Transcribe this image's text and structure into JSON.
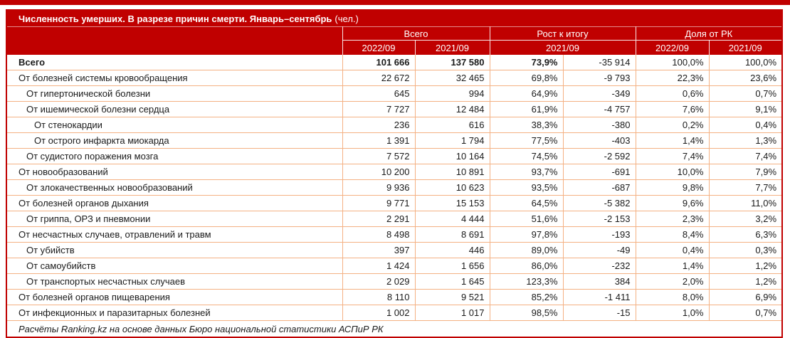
{
  "colors": {
    "header_bg": "#C00000",
    "grid_border": "#F4B183",
    "header_text": "#FFFFFF"
  },
  "table": {
    "title": "Численность умерших. В разрезе причин смерти. Январь–сентябрь",
    "title_suffix": "(чел.)",
    "column_groups": [
      {
        "label": "Всего"
      },
      {
        "label": "Рост к итогу"
      },
      {
        "label": "Доля от РК"
      }
    ],
    "subheaders": [
      "2022/09",
      "2021/09",
      "2021/09",
      "2022/09",
      "2021/09"
    ],
    "rows": [
      {
        "label": "Всего",
        "indent": 0,
        "bold_label": true,
        "bold_values": 3,
        "values": [
          "101 666",
          "137 580",
          "73,9%",
          "-35 914",
          "100,0%",
          "100,0%"
        ]
      },
      {
        "label": "От болезней системы кровообращения",
        "indent": 0,
        "values": [
          "22 672",
          "32 465",
          "69,8%",
          "-9 793",
          "22,3%",
          "23,6%"
        ]
      },
      {
        "label": "От гипертонической болезни",
        "indent": 1,
        "values": [
          "645",
          "994",
          "64,9%",
          "-349",
          "0,6%",
          "0,7%"
        ]
      },
      {
        "label": "От ишемической болезни сердца",
        "indent": 1,
        "values": [
          "7 727",
          "12 484",
          "61,9%",
          "-4 757",
          "7,6%",
          "9,1%"
        ]
      },
      {
        "label": "От стенокардии",
        "indent": 2,
        "values": [
          "236",
          "616",
          "38,3%",
          "-380",
          "0,2%",
          "0,4%"
        ]
      },
      {
        "label": "От острого инфаркта миокарда",
        "indent": 2,
        "values": [
          "1 391",
          "1 794",
          "77,5%",
          "-403",
          "1,4%",
          "1,3%"
        ]
      },
      {
        "label": "От судистого поражения мозга",
        "indent": 1,
        "values": [
          "7 572",
          "10 164",
          "74,5%",
          "-2 592",
          "7,4%",
          "7,4%"
        ]
      },
      {
        "label": "От новообразований",
        "indent": 0,
        "values": [
          "10 200",
          "10 891",
          "93,7%",
          "-691",
          "10,0%",
          "7,9%"
        ]
      },
      {
        "label": "От злокачественных новообразований",
        "indent": 1,
        "values": [
          "9 936",
          "10 623",
          "93,5%",
          "-687",
          "9,8%",
          "7,7%"
        ]
      },
      {
        "label": "От болезней органов дыхания",
        "indent": 0,
        "values": [
          "9 771",
          "15 153",
          "64,5%",
          "-5 382",
          "9,6%",
          "11,0%"
        ]
      },
      {
        "label": "От гриппа, ОРЗ и пневмонии",
        "indent": 1,
        "values": [
          "2 291",
          "4 444",
          "51,6%",
          "-2 153",
          "2,3%",
          "3,2%"
        ]
      },
      {
        "label": "От несчастных случаев, отравлений и травм",
        "indent": 0,
        "values": [
          "8 498",
          "8 691",
          "97,8%",
          "-193",
          "8,4%",
          "6,3%"
        ]
      },
      {
        "label": "От убийств",
        "indent": 1,
        "values": [
          "397",
          "446",
          "89,0%",
          "-49",
          "0,4%",
          "0,3%"
        ]
      },
      {
        "label": "От самоубийств",
        "indent": 1,
        "values": [
          "1 424",
          "1 656",
          "86,0%",
          "-232",
          "1,4%",
          "1,2%"
        ]
      },
      {
        "label": "От транспортых несчастных случаев",
        "indent": 1,
        "values": [
          "2 029",
          "1 645",
          "123,3%",
          "384",
          "2,0%",
          "1,2%"
        ]
      },
      {
        "label": "От болезней органов пищеварения",
        "indent": 0,
        "values": [
          "8 110",
          "9 521",
          "85,2%",
          "-1 411",
          "8,0%",
          "6,9%"
        ]
      },
      {
        "label": "От инфекционных и паразитарных болезней",
        "indent": 0,
        "values": [
          "1 002",
          "1 017",
          "98,5%",
          "-15",
          "1,0%",
          "0,7%"
        ]
      }
    ],
    "footer": "Расчёты Ranking.kz на основе данных Бюро национальной статистики АСПиР РК"
  }
}
